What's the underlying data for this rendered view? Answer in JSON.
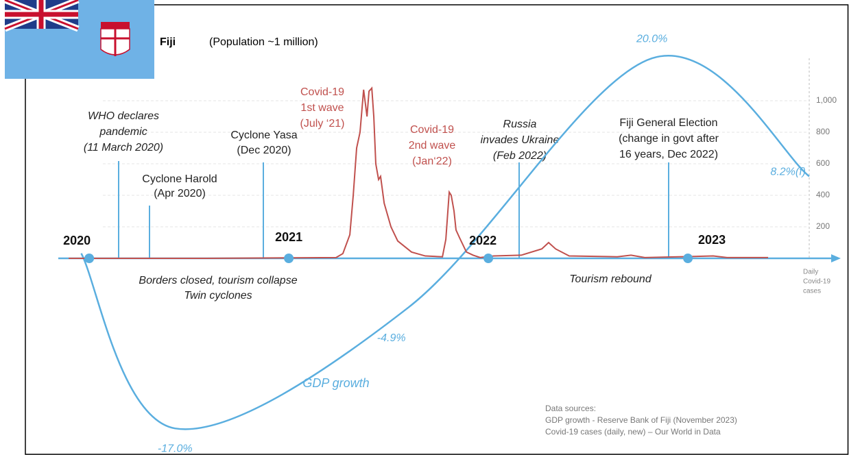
{
  "header": {
    "country": "Fiji",
    "subtitle": "(Population ~1 million)"
  },
  "chart_data": {
    "type": "line",
    "xlim": [
      2019.845,
      2023.608
    ],
    "xticks": [
      2020,
      2021,
      2022,
      2023
    ],
    "ylim": [
      -18.7,
      24.8
    ],
    "y2lim": [
      -1187,
      1574
    ],
    "y2ticks": [
      200,
      400,
      600,
      800,
      {
        "value": 1000,
        "label": "1,000"
      }
    ],
    "y2label": [
      "Daily",
      "Covid-19",
      "cases"
    ],
    "grid": true,
    "series": [
      {
        "name": "GDP growth",
        "color": "#5aaedf",
        "x": [
          2019.96,
          2020.43,
          2021.6,
          2022.82,
          2023.608
        ],
        "values": [
          0.5,
          -17.0,
          -4.9,
          20.0,
          8.2
        ],
        "value_labels": [
          null,
          "-17.0%",
          "-4.9%",
          "20.0%",
          "8.2%(f)"
        ]
      },
      {
        "color": "#c0504d",
        "axis": "y2",
        "x": [
          2019.897,
          2020.584,
          2021.237,
          2021.271,
          2021.306,
          2021.323,
          2021.34,
          2021.357,
          2021.375,
          2021.392,
          2021.402,
          2021.416,
          2021.426,
          2021.436,
          2021.45,
          2021.46,
          2021.478,
          2021.512,
          2021.546,
          2021.615,
          2021.684,
          2021.77,
          2021.787,
          2021.804,
          2021.814,
          2021.828,
          2021.838,
          2021.856,
          2021.89,
          2021.924,
          2021.959,
          2022.027,
          2022.165,
          2022.268,
          2022.302,
          2022.337,
          2022.405,
          2022.646,
          2022.715,
          2022.784,
          2023.127,
          2023.196,
          2023.402
        ],
        "values": [
          0,
          0,
          5,
          30,
          150,
          400,
          700,
          800,
          1070,
          900,
          1060,
          1080,
          900,
          600,
          500,
          520,
          350,
          200,
          110,
          40,
          15,
          10,
          120,
          420,
          400,
          300,
          180,
          130,
          40,
          20,
          5,
          15,
          20,
          60,
          100,
          60,
          15,
          10,
          20,
          5,
          15,
          5,
          5
        ]
      }
    ],
    "annotations": [
      {
        "lines": [
          "WHO declares",
          "pandemic",
          "(11 March 2020)"
        ]
      },
      {
        "lines": [
          "Cyclone Harold",
          "(Apr 2020)"
        ]
      },
      {
        "lines": [
          "Cyclone Yasa",
          "(Dec 2020)"
        ]
      },
      {
        "lines": [
          "Covid-19",
          "1st wave",
          "(July ‘21)"
        ]
      },
      {
        "lines": [
          "Covid-19",
          "2nd wave",
          "(Jan‘22)"
        ]
      },
      {
        "lines": [
          "Russia",
          "invades Ukraine",
          "(Feb 2022)"
        ]
      },
      {
        "lines": [
          "Fiji General Election",
          "(change in govt after",
          "16 years, Dec 2022)"
        ]
      }
    ],
    "periods": [
      {
        "lines": [
          "Borders closed, tourism collapse",
          "Twin cyclones"
        ]
      },
      {
        "lines": [
          "Tourism rebound"
        ]
      }
    ],
    "sources": [
      "Data sources:",
      "GDP growth - Reserve Bank of Fiji (November 2023)",
      "Covid-19 cases (daily, new) – Our World in Data"
    ]
  }
}
